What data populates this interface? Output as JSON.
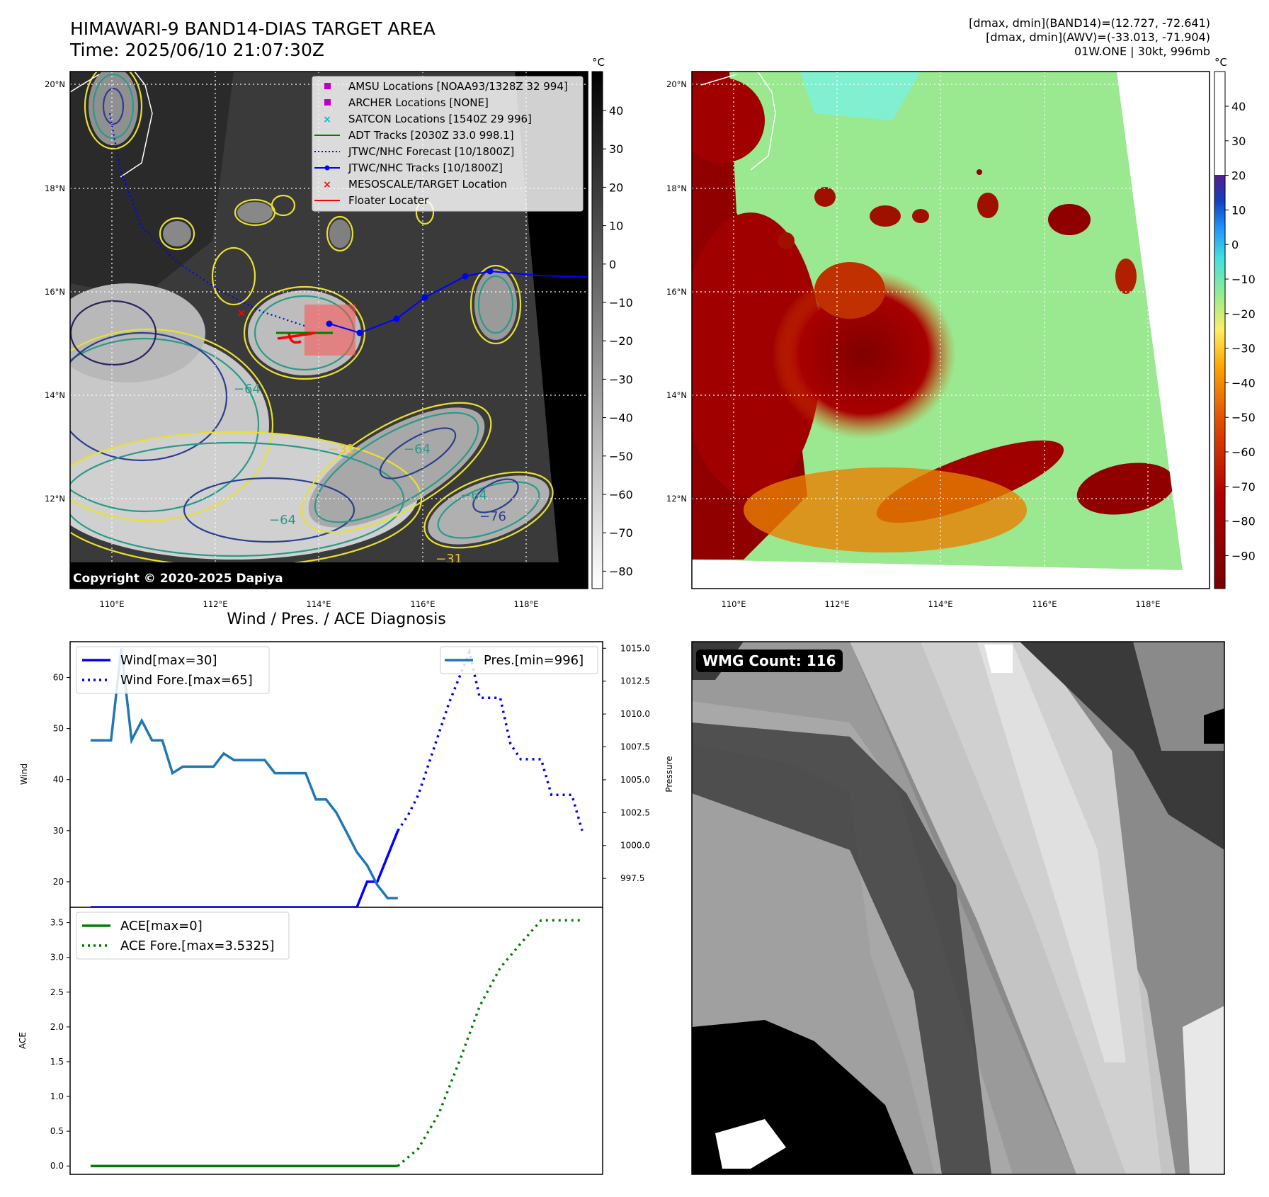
{
  "header": {
    "title": "HIMAWARI-9 BAND14-DIAS TARGET AREA",
    "time": "Time: 2025/06/10 21:07:30Z",
    "info_lines": [
      "[dmax, dmin](BAND14)=(12.727, -72.641)",
      "[dmax, dmin](AWV)=(-33.013, -71.904)",
      "01W.ONE | 30kt, 996mb"
    ]
  },
  "map_axes": {
    "lon_ticks": [
      "110°E",
      "112°E",
      "114°E",
      "116°E",
      "118°E"
    ],
    "lat_ticks": [
      "20°N",
      "18°N",
      "16°N",
      "14°N",
      "12°N"
    ]
  },
  "ir_map": {
    "legend": [
      {
        "label": "AMSU Locations [NOAA93/1328Z 32 994]",
        "symbol": "square",
        "color": "#bf00bf"
      },
      {
        "label": "ARCHER Locations [NONE]",
        "symbol": "square",
        "color": "#bf00bf"
      },
      {
        "label": "SATCON Locations [1540Z 29 996]",
        "symbol": "x",
        "color": "#00bfbf"
      },
      {
        "label": "ADT Tracks [2030Z 33.0 998.1]",
        "symbol": "line",
        "color": "#008000"
      },
      {
        "label": "JTWC/NHC Forecast [10/1800Z]",
        "symbol": "dotted",
        "color": "#0000ff"
      },
      {
        "label": "JTWC/NHC Tracks [10/1800Z]",
        "symbol": "line-dot",
        "color": "#0000ff"
      },
      {
        "label": "MESOSCALE/TARGET Location",
        "symbol": "x",
        "color": "#ff0000"
      },
      {
        "label": "Floater Locater",
        "symbol": "line",
        "color": "#ff0000"
      }
    ],
    "contour_labels": [
      "−64",
      "−31",
      "−64",
      "−64",
      "−76",
      "−64",
      "−31"
    ],
    "colorbar_unit": "°C",
    "colorbar_ticks": [
      "40",
      "30",
      "20",
      "10",
      "0",
      "−10",
      "−20",
      "−30",
      "−40",
      "−50",
      "−60",
      "−70",
      "−80"
    ],
    "copyright": "Copyright © 2020-2025 Dapiya"
  },
  "awv_map": {
    "colorbar_unit": "°C",
    "colorbar_ticks": [
      "40",
      "30",
      "20",
      "10",
      "0",
      "−10",
      "−20",
      "−30",
      "−40",
      "−50",
      "−60",
      "−70",
      "−80",
      "−90"
    ]
  },
  "wmg": {
    "badge": "WMG Count: 116"
  },
  "chart_data": [
    {
      "type": "line",
      "title": "Wind / Pres. / ACE Diagnosis",
      "ylabel": "Wind",
      "ylim": [
        15,
        67
      ],
      "y2label": "Pressure",
      "y2lim": [
        995.3,
        1015.5
      ],
      "yticks": [
        "20",
        "30",
        "40",
        "50",
        "60"
      ],
      "y2ticks": [
        "997.5",
        "1000.0",
        "1002.5",
        "1005.0",
        "1007.5",
        "1010.0",
        "1012.5",
        "1015.0"
      ],
      "xlim": [
        -2,
        50
      ],
      "series": [
        {
          "name": "Wind[max=30]",
          "axis": "left",
          "style": "solid",
          "color": "#0000ff",
          "x": [
            0,
            26,
            27,
            28,
            30
          ],
          "values": [
            15,
            15,
            20,
            20,
            30
          ]
        },
        {
          "name": "Wind Fore.[max=65]",
          "axis": "left",
          "style": "dotted",
          "color": "#0000ff",
          "x": [
            30,
            31,
            32,
            33,
            34,
            35,
            36,
            37,
            38,
            39,
            40,
            41,
            42,
            43,
            44,
            45,
            46,
            47,
            48
          ],
          "values": [
            30,
            33,
            37,
            43,
            49,
            55,
            60,
            65,
            56,
            56,
            56,
            47,
            44,
            44,
            44,
            37,
            37,
            37,
            30
          ]
        },
        {
          "name": "Pres.[min=996]",
          "axis": "right",
          "style": "solid",
          "color": "#1f77b4",
          "x": [
            0,
            1,
            2,
            3,
            4,
            5,
            6,
            7,
            8,
            9,
            10,
            11,
            12,
            13,
            14,
            15,
            16,
            17,
            18,
            19,
            20,
            21,
            22,
            23,
            24,
            25,
            26,
            27,
            28,
            29,
            30
          ],
          "values": [
            1008,
            1008,
            1008,
            1015,
            1008,
            1009.5,
            1008,
            1008,
            1005.5,
            1006,
            1006,
            1006,
            1006,
            1007,
            1006.5,
            1006.5,
            1006.5,
            1006.5,
            1005.5,
            1005.5,
            1005.5,
            1005.5,
            1003.5,
            1003.5,
            1002.5,
            1001,
            999.5,
            998.5,
            997,
            996,
            996
          ]
        }
      ]
    },
    {
      "type": "line",
      "ylabel": "ACE",
      "ylim": [
        -0.12,
        3.72
      ],
      "yticks": [
        "0.0",
        "0.5",
        "1.0",
        "1.5",
        "2.0",
        "2.5",
        "3.0",
        "3.5"
      ],
      "xlim": [
        -2,
        50
      ],
      "series": [
        {
          "name": "ACE[max=0]",
          "style": "solid",
          "color": "#008000",
          "x": [
            0,
            30
          ],
          "values": [
            0,
            0
          ]
        },
        {
          "name": "ACE Fore.[max=3.5325]",
          "style": "dotted",
          "color": "#008000",
          "x": [
            30,
            32,
            34,
            36,
            38,
            40,
            42,
            44,
            46,
            48
          ],
          "values": [
            0,
            0.25,
            0.75,
            1.5,
            2.3,
            2.85,
            3.2,
            3.5325,
            3.5325,
            3.5325
          ]
        }
      ]
    }
  ]
}
